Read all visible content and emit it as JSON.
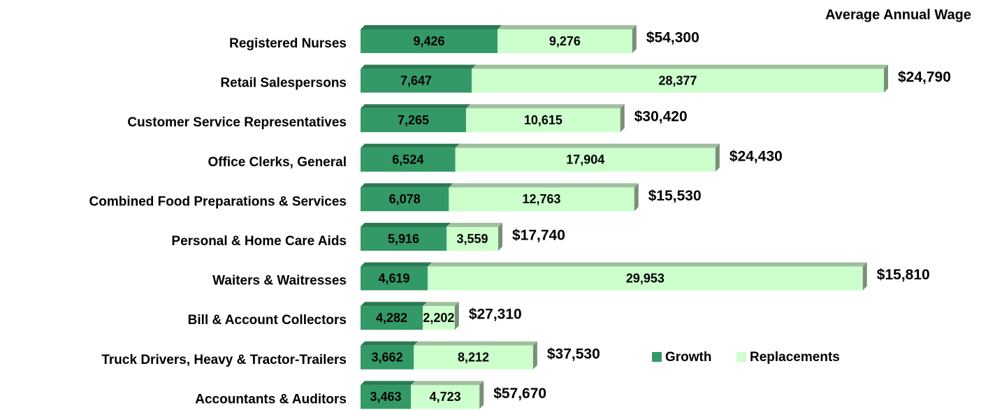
{
  "chart_data": {
    "type": "stacked_barh",
    "title": "Average Annual Wage",
    "categories": [
      "Registered Nurses",
      "Retail Salespersons",
      "Customer Service Representatives",
      "Office Clerks, General",
      "Combined Food Preparations & Services",
      "Personal & Home Care Aids",
      "Waiters & Waitresses",
      "Bill & Account Collectors",
      "Truck Drivers, Heavy & Tractor-Trailers",
      "Accountants & Auditors"
    ],
    "series": [
      {
        "name": "Growth",
        "color": "#339966",
        "values": [
          9426,
          7647,
          7265,
          6524,
          6078,
          5916,
          4619,
          4282,
          3662,
          3463
        ],
        "value_labels": [
          "9,426",
          "7,647",
          "7,265",
          "6,524",
          "6,078",
          "5,916",
          "4,619",
          "4,282",
          "3,662",
          "3,463"
        ]
      },
      {
        "name": "Replacements",
        "color": "#ccffcc",
        "values": [
          9276,
          28377,
          10615,
          17904,
          12763,
          3559,
          29953,
          2202,
          8212,
          4723
        ],
        "value_labels": [
          "9,276",
          "28,377",
          "10,615",
          "17,904",
          "12,763",
          "3,559",
          "29,953",
          "2,202",
          "8,212",
          "4,723"
        ]
      }
    ],
    "annotations": [
      "$54,300",
      "$24,790",
      "$30,420",
      "$24,430",
      "$15,530",
      "$17,740",
      "$15,810",
      "$27,310",
      "$37,530",
      "$57,670"
    ]
  }
}
